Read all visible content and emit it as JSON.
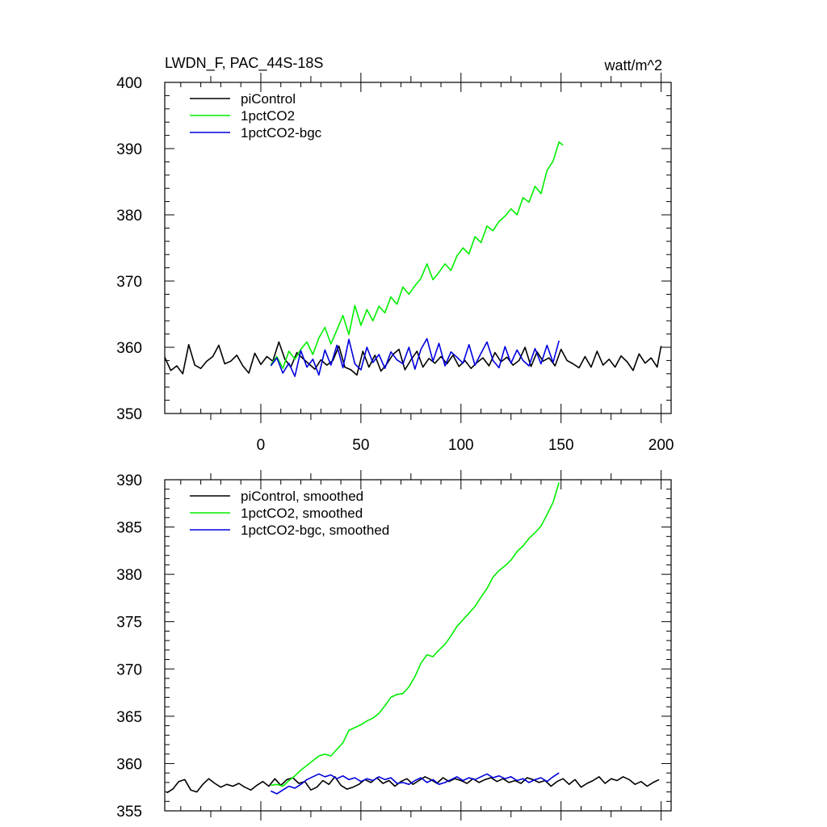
{
  "header": {
    "title": "LWDN_F, PAC_44S-18S",
    "units": "watt/m^2"
  },
  "colors": {
    "piControl": "#000000",
    "1pctCO2": "#00ee00",
    "1pctCO2-bgc": "#0000dd"
  },
  "chart_data": [
    {
      "type": "line",
      "title": "LWDN_F, PAC_44S-18S",
      "units": "watt/m^2",
      "xlim": [
        -48,
        205
      ],
      "ylim": [
        350,
        400
      ],
      "xticks": [
        0,
        50,
        100,
        150,
        200
      ],
      "xtick_labels": [
        "0",
        "50",
        "100",
        "150",
        "200"
      ],
      "yticks": [
        350,
        360,
        370,
        380,
        390,
        400
      ],
      "ytick_labels": [
        "350",
        "360",
        "370",
        "380",
        "390",
        "400"
      ],
      "legend_position": "top-left",
      "series": [
        {
          "name": "piControl",
          "color": "#000000",
          "x": [
            -48,
            -45,
            -42,
            -39,
            -36,
            -33,
            -30,
            -27,
            -24,
            -21,
            -18,
            -15,
            -12,
            -9,
            -6,
            -3,
            0,
            3,
            6,
            9,
            12,
            15,
            18,
            21,
            24,
            27,
            30,
            33,
            36,
            39,
            42,
            45,
            48,
            51,
            54,
            57,
            60,
            63,
            66,
            69,
            72,
            75,
            78,
            81,
            84,
            87,
            90,
            93,
            96,
            99,
            102,
            105,
            108,
            111,
            114,
            117,
            120,
            123,
            126,
            129,
            132,
            135,
            138,
            141,
            144,
            147,
            150,
            153,
            156,
            159,
            162,
            165,
            168,
            171,
            174,
            177,
            180,
            183,
            186,
            189,
            192,
            195,
            198,
            200
          ],
          "y": [
            358.5,
            356.5,
            357.2,
            356.0,
            360.4,
            357.3,
            356.8,
            357.9,
            358.6,
            360.3,
            357.5,
            357.9,
            358.8,
            357.2,
            356.1,
            359.1,
            357.4,
            358.6,
            357.9,
            360.8,
            358.2,
            357.0,
            359.2,
            358.3,
            357.5,
            356.7,
            358.1,
            357.3,
            358.0,
            360.2,
            357.0,
            356.6,
            355.8,
            359.4,
            357.0,
            358.8,
            356.4,
            357.5,
            358.9,
            359.7,
            356.6,
            358.1,
            359.4,
            357.0,
            358.3,
            357.6,
            358.6,
            357.5,
            358.8,
            357.1,
            358.0,
            356.8,
            357.7,
            358.4,
            357.2,
            359.2,
            357.8,
            358.5,
            357.3,
            358.0,
            360.0,
            357.1,
            359.3,
            357.9,
            358.4,
            357.2,
            359.7,
            358.0,
            357.5,
            356.9,
            358.6,
            357.0,
            359.4,
            357.3,
            358.2,
            357.0,
            358.7,
            357.8,
            356.5,
            359.0,
            357.6,
            358.4,
            357.0,
            360.2
          ]
        },
        {
          "name": "1pctCO2",
          "color": "#00ee00",
          "x": [
            5,
            8,
            11,
            14,
            17,
            20,
            23,
            26,
            29,
            32,
            35,
            38,
            41,
            44,
            47,
            50,
            53,
            56,
            59,
            62,
            65,
            68,
            71,
            74,
            77,
            80,
            83,
            86,
            89,
            92,
            95,
            98,
            101,
            104,
            107,
            110,
            113,
            116,
            119,
            122,
            125,
            128,
            131,
            134,
            137,
            140,
            143,
            146,
            149,
            151
          ],
          "y": [
            357.4,
            358.6,
            356.8,
            359.4,
            358.2,
            359.7,
            360.8,
            358.9,
            361.4,
            363.0,
            360.5,
            362.6,
            364.8,
            361.9,
            366.3,
            363.3,
            365.7,
            364.0,
            366.2,
            365.2,
            367.6,
            366.5,
            369.1,
            368.0,
            369.3,
            370.4,
            372.6,
            370.2,
            371.3,
            372.6,
            371.6,
            373.8,
            375.0,
            374.1,
            376.7,
            375.8,
            378.3,
            377.6,
            379.0,
            379.8,
            380.9,
            380.0,
            382.6,
            381.9,
            384.3,
            383.2,
            386.7,
            388.1,
            391.0,
            390.5
          ]
        },
        {
          "name": "1pctCO2-bgc",
          "color": "#0000dd",
          "x": [
            5,
            8,
            11,
            14,
            17,
            20,
            23,
            26,
            29,
            32,
            35,
            38,
            41,
            44,
            47,
            50,
            53,
            56,
            59,
            62,
            65,
            68,
            71,
            74,
            77,
            80,
            83,
            86,
            89,
            92,
            95,
            98,
            101,
            104,
            107,
            110,
            113,
            116,
            119,
            122,
            125,
            128,
            131,
            134,
            137,
            140,
            143,
            146,
            149
          ],
          "y": [
            357.2,
            358.4,
            356.1,
            357.6,
            355.6,
            359.5,
            357.0,
            358.2,
            355.8,
            359.6,
            357.3,
            360.3,
            356.9,
            361.2,
            357.5,
            356.6,
            360.0,
            357.7,
            358.9,
            356.8,
            359.3,
            358.1,
            357.5,
            360.0,
            356.7,
            359.7,
            361.3,
            357.9,
            360.6,
            357.2,
            359.3,
            358.5,
            357.6,
            360.4,
            357.3,
            359.1,
            360.8,
            358.0,
            356.9,
            360.1,
            357.6,
            359.6,
            358.0,
            357.2,
            359.8,
            357.5,
            360.3,
            357.7,
            361.0
          ]
        }
      ]
    },
    {
      "type": "line",
      "xlim": [
        -48,
        205
      ],
      "ylim": [
        355,
        390
      ],
      "xticks": [
        0,
        50,
        100,
        150,
        200
      ],
      "yticks": [
        355,
        360,
        365,
        370,
        375,
        380,
        385,
        390
      ],
      "ytick_labels": [
        "355",
        "360",
        "365",
        "370",
        "375",
        "380",
        "385",
        "390"
      ],
      "legend_position": "top-left",
      "series": [
        {
          "name": "piControl, smoothed",
          "color": "#000000",
          "x": [
            -47,
            -44,
            -41,
            -38,
            -35,
            -32,
            -29,
            -26,
            -23,
            -20,
            -17,
            -14,
            -11,
            -8,
            -5,
            -2,
            1,
            4,
            7,
            10,
            13,
            16,
            19,
            22,
            25,
            28,
            31,
            34,
            37,
            40,
            43,
            46,
            49,
            52,
            55,
            58,
            61,
            64,
            67,
            70,
            73,
            76,
            79,
            82,
            85,
            88,
            91,
            94,
            97,
            100,
            103,
            106,
            109,
            112,
            115,
            118,
            121,
            124,
            127,
            130,
            133,
            136,
            139,
            142,
            145,
            148,
            151,
            154,
            157,
            160,
            163,
            166,
            169,
            172,
            175,
            178,
            181,
            184,
            187,
            190,
            193,
            196,
            199
          ],
          "y": [
            356.9,
            357.3,
            358.1,
            358.3,
            357.2,
            357.0,
            357.8,
            358.4,
            357.9,
            357.5,
            357.8,
            357.6,
            357.9,
            357.5,
            357.2,
            357.7,
            358.1,
            357.6,
            358.4,
            357.7,
            358.3,
            358.5,
            357.9,
            358.1,
            357.2,
            357.5,
            358.2,
            357.8,
            358.6,
            357.7,
            357.3,
            357.5,
            357.8,
            358.3,
            358.0,
            358.5,
            357.9,
            358.2,
            357.6,
            358.1,
            358.4,
            357.8,
            358.2,
            358.6,
            358.3,
            357.9,
            358.5,
            358.1,
            358.4,
            358.2,
            357.9,
            358.4,
            358.0,
            358.3,
            358.5,
            358.1,
            358.4,
            358.0,
            358.2,
            357.9,
            358.5,
            358.3,
            358.0,
            358.2,
            357.6,
            358.1,
            358.4,
            357.8,
            358.3,
            357.5,
            357.9,
            358.2,
            358.6,
            357.9,
            358.4,
            358.2,
            358.6,
            358.3,
            357.8,
            358.1,
            357.6,
            358.0,
            358.3
          ]
        },
        {
          "name": "1pctCO2, smoothed",
          "color": "#00ee00",
          "x": [
            5,
            8,
            11,
            14,
            17,
            20,
            23,
            26,
            29,
            32,
            35,
            38,
            41,
            44,
            47,
            50,
            53,
            56,
            59,
            62,
            65,
            68,
            71,
            74,
            77,
            80,
            83,
            86,
            89,
            92,
            95,
            98,
            101,
            104,
            107,
            110,
            113,
            116,
            119,
            122,
            125,
            128,
            131,
            134,
            137,
            140,
            143,
            146,
            149
          ],
          "y": [
            357.7,
            357.8,
            357.6,
            358.2,
            358.7,
            359.3,
            359.8,
            360.3,
            360.8,
            361.0,
            360.8,
            361.5,
            362.2,
            363.5,
            363.8,
            364.1,
            364.5,
            364.8,
            365.3,
            366.1,
            367.0,
            367.3,
            367.4,
            368.1,
            369.2,
            370.6,
            371.5,
            371.3,
            372.0,
            372.6,
            373.5,
            374.5,
            375.2,
            375.9,
            376.6,
            377.6,
            378.5,
            379.7,
            380.4,
            380.9,
            381.5,
            382.4,
            383.0,
            383.8,
            384.4,
            385.1,
            386.3,
            387.6,
            389.7
          ]
        },
        {
          "name": "1pctCO2-bgc, smoothed",
          "color": "#0000dd",
          "x": [
            5,
            8,
            11,
            14,
            17,
            20,
            23,
            26,
            29,
            32,
            35,
            38,
            41,
            44,
            47,
            50,
            53,
            56,
            59,
            62,
            65,
            68,
            71,
            74,
            77,
            80,
            83,
            86,
            89,
            92,
            95,
            98,
            101,
            104,
            107,
            110,
            113,
            116,
            119,
            122,
            125,
            128,
            131,
            134,
            137,
            140,
            143,
            146,
            149
          ],
          "y": [
            357.1,
            356.8,
            357.2,
            357.6,
            357.4,
            357.8,
            358.3,
            358.6,
            358.9,
            358.6,
            358.8,
            358.4,
            358.7,
            358.3,
            358.5,
            358.1,
            358.4,
            358.2,
            358.6,
            358.3,
            358.5,
            357.9,
            358.0,
            357.8,
            358.2,
            358.5,
            358.0,
            358.3,
            357.8,
            358.0,
            358.3,
            358.6,
            358.2,
            358.5,
            358.3,
            358.6,
            358.9,
            358.5,
            358.7,
            358.4,
            358.6,
            358.2,
            358.4,
            358.0,
            358.3,
            358.5,
            358.1,
            358.6,
            359.0
          ]
        }
      ]
    }
  ]
}
